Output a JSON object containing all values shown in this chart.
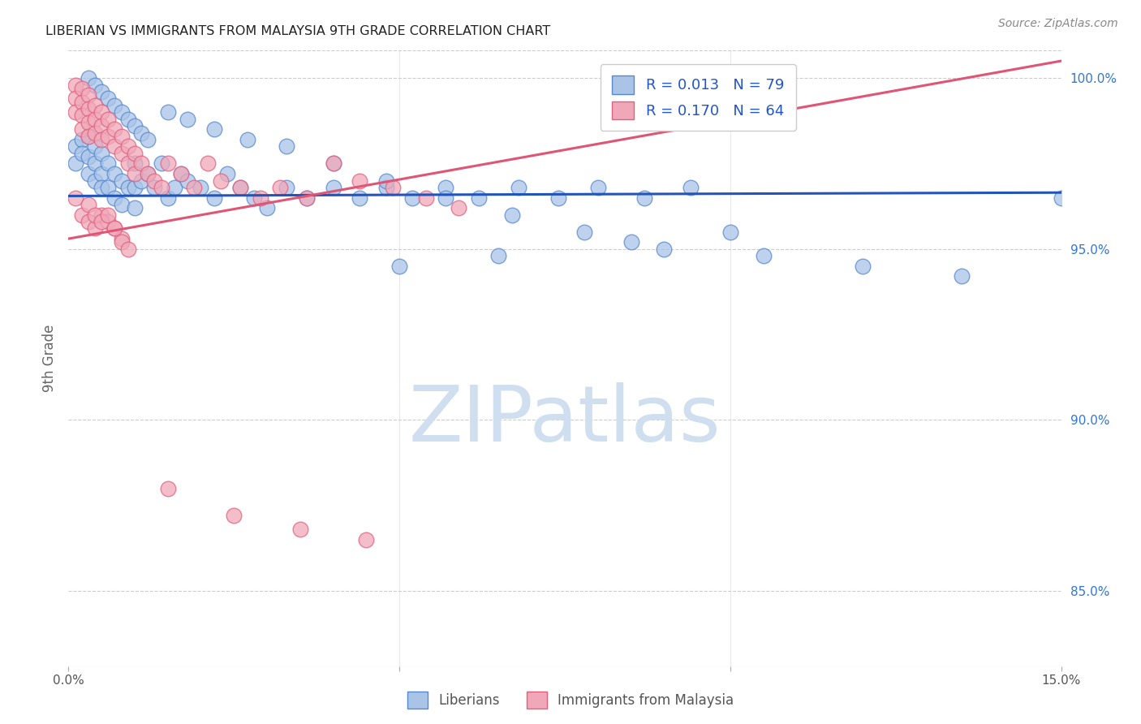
{
  "title": "LIBERIAN VS IMMIGRANTS FROM MALAYSIA 9TH GRADE CORRELATION CHART",
  "source": "Source: ZipAtlas.com",
  "ylabel": "9th Grade",
  "right_yticks": [
    "85.0%",
    "90.0%",
    "95.0%",
    "100.0%"
  ],
  "right_ytick_vals": [
    0.85,
    0.9,
    0.95,
    1.0
  ],
  "xlim": [
    0.0,
    0.15
  ],
  "ylim": [
    0.828,
    1.008
  ],
  "legend_blue_r": "R = 0.013",
  "legend_blue_n": "N = 79",
  "legend_pink_r": "R = 0.170",
  "legend_pink_n": "N = 64",
  "blue_color": "#aac4e8",
  "pink_color": "#f0a8b8",
  "blue_edge_color": "#5588cc",
  "pink_edge_color": "#e06080",
  "blue_line_color": "#2255bb",
  "pink_line_color": "#e05575",
  "legend_text_color": "#2255cc",
  "watermark_text": "ZIPatlas",
  "watermark_color": "#d0dff0",
  "blue_scatter_x": [
    0.001,
    0.001,
    0.002,
    0.002,
    0.003,
    0.003,
    0.003,
    0.004,
    0.004,
    0.004,
    0.005,
    0.005,
    0.005,
    0.006,
    0.006,
    0.007,
    0.007,
    0.008,
    0.008,
    0.009,
    0.01,
    0.01,
    0.011,
    0.012,
    0.013,
    0.014,
    0.015,
    0.016,
    0.017,
    0.018,
    0.02,
    0.022,
    0.024,
    0.026,
    0.028,
    0.03,
    0.033,
    0.036,
    0.04,
    0.044,
    0.048,
    0.052,
    0.057,
    0.062,
    0.068,
    0.074,
    0.08,
    0.087,
    0.094,
    0.01,
    0.003,
    0.004,
    0.005,
    0.006,
    0.007,
    0.008,
    0.009,
    0.01,
    0.011,
    0.012,
    0.015,
    0.018,
    0.022,
    0.027,
    0.033,
    0.04,
    0.048,
    0.057,
    0.067,
    0.078,
    0.09,
    0.105,
    0.12,
    0.135,
    0.15,
    0.1,
    0.085,
    0.065,
    0.05
  ],
  "blue_scatter_y": [
    0.98,
    0.975,
    0.982,
    0.978,
    0.983,
    0.977,
    0.972,
    0.98,
    0.975,
    0.97,
    0.978,
    0.972,
    0.968,
    0.975,
    0.968,
    0.972,
    0.965,
    0.97,
    0.963,
    0.968,
    0.975,
    0.968,
    0.97,
    0.972,
    0.968,
    0.975,
    0.965,
    0.968,
    0.972,
    0.97,
    0.968,
    0.965,
    0.972,
    0.968,
    0.965,
    0.962,
    0.968,
    0.965,
    0.968,
    0.965,
    0.968,
    0.965,
    0.968,
    0.965,
    0.968,
    0.965,
    0.968,
    0.965,
    0.968,
    0.962,
    1.0,
    0.998,
    0.996,
    0.994,
    0.992,
    0.99,
    0.988,
    0.986,
    0.984,
    0.982,
    0.99,
    0.988,
    0.985,
    0.982,
    0.98,
    0.975,
    0.97,
    0.965,
    0.96,
    0.955,
    0.95,
    0.948,
    0.945,
    0.942,
    0.965,
    0.955,
    0.952,
    0.948,
    0.945
  ],
  "pink_scatter_x": [
    0.001,
    0.001,
    0.001,
    0.002,
    0.002,
    0.002,
    0.002,
    0.003,
    0.003,
    0.003,
    0.003,
    0.004,
    0.004,
    0.004,
    0.005,
    0.005,
    0.005,
    0.006,
    0.006,
    0.007,
    0.007,
    0.008,
    0.008,
    0.009,
    0.009,
    0.01,
    0.01,
    0.011,
    0.012,
    0.013,
    0.014,
    0.015,
    0.017,
    0.019,
    0.021,
    0.023,
    0.026,
    0.029,
    0.032,
    0.036,
    0.04,
    0.044,
    0.049,
    0.054,
    0.059,
    0.001,
    0.002,
    0.003,
    0.004,
    0.005,
    0.006,
    0.007,
    0.008,
    0.003,
    0.004,
    0.005,
    0.006,
    0.007,
    0.008,
    0.009,
    0.015,
    0.025,
    0.035,
    0.045
  ],
  "pink_scatter_y": [
    0.998,
    0.994,
    0.99,
    0.997,
    0.993,
    0.989,
    0.985,
    0.995,
    0.991,
    0.987,
    0.983,
    0.992,
    0.988,
    0.984,
    0.99,
    0.986,
    0.982,
    0.988,
    0.983,
    0.985,
    0.98,
    0.983,
    0.978,
    0.98,
    0.975,
    0.978,
    0.972,
    0.975,
    0.972,
    0.97,
    0.968,
    0.975,
    0.972,
    0.968,
    0.975,
    0.97,
    0.968,
    0.965,
    0.968,
    0.965,
    0.975,
    0.97,
    0.968,
    0.965,
    0.962,
    0.965,
    0.96,
    0.958,
    0.956,
    0.96,
    0.958,
    0.956,
    0.953,
    0.963,
    0.96,
    0.958,
    0.96,
    0.956,
    0.952,
    0.95,
    0.88,
    0.872,
    0.868,
    0.865
  ],
  "blue_trend_x": [
    0.0,
    0.15
  ],
  "blue_trend_y": [
    0.9655,
    0.9665
  ],
  "pink_trend_x": [
    0.0,
    0.15
  ],
  "pink_trend_y": [
    0.953,
    1.005
  ]
}
